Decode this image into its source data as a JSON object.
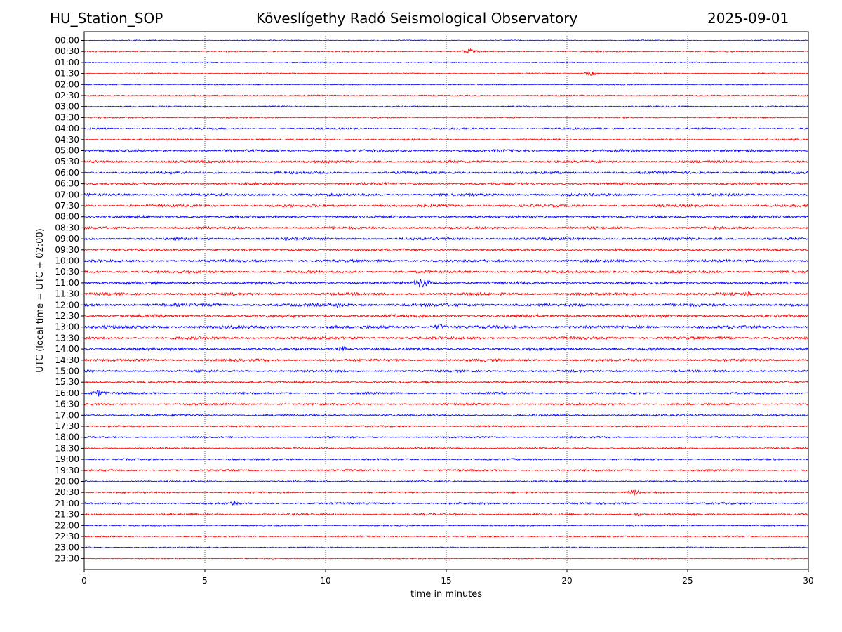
{
  "header": {
    "station": "HU_Station_SOP",
    "observatory": "Köveslígethy Radó Seismological Observatory",
    "date": "2025-09-01"
  },
  "chart_data": {
    "type": "line",
    "title": "Köveslígethy Radó Seismological Observatory",
    "xlabel": "time in minutes",
    "ylabel": "UTC (local time = UTC + 02:00)",
    "xlim": [
      0,
      30
    ],
    "x_ticks": [
      0,
      5,
      10,
      15,
      20,
      25,
      30
    ],
    "x_gridlines": "vertical dotted at each tick",
    "trace_colors": [
      "#0000ff",
      "#ff0000"
    ],
    "row_labels": [
      "00:00",
      "00:30",
      "01:00",
      "01:30",
      "02:00",
      "02:30",
      "03:00",
      "03:30",
      "04:00",
      "04:30",
      "05:00",
      "05:30",
      "06:00",
      "06:30",
      "07:00",
      "07:30",
      "08:00",
      "08:30",
      "09:00",
      "09:30",
      "10:00",
      "10:30",
      "11:00",
      "11:30",
      "12:00",
      "12:30",
      "13:00",
      "13:30",
      "14:00",
      "14:30",
      "15:00",
      "15:30",
      "16:00",
      "16:30",
      "17:00",
      "17:30",
      "18:00",
      "18:30",
      "19:00",
      "19:30",
      "20:00",
      "20:30",
      "21:00",
      "21:30",
      "22:00",
      "22:30",
      "23:00",
      "23:30"
    ],
    "noise_level": [
      0.8,
      1.0,
      0.8,
      0.8,
      0.8,
      0.9,
      1.0,
      1.0,
      1.2,
      1.2,
      1.8,
      1.8,
      1.8,
      1.8,
      1.8,
      1.8,
      1.8,
      1.8,
      1.8,
      1.8,
      1.8,
      1.8,
      2.0,
      2.0,
      2.2,
      2.2,
      2.2,
      2.0,
      2.0,
      1.8,
      1.6,
      1.6,
      1.5,
      1.4,
      1.4,
      1.2,
      1.2,
      1.2,
      1.2,
      1.3,
      1.2,
      1.2,
      1.4,
      1.4,
      1.0,
      1.0,
      0.8,
      0.8
    ],
    "events": [
      {
        "row": "00:30",
        "minute": 16.0,
        "amplitude": 4
      },
      {
        "row": "01:30",
        "minute": 21.0,
        "amplitude": 3
      },
      {
        "row": "11:00",
        "minute": 14.0,
        "amplitude": 8
      },
      {
        "row": "11:30",
        "minute": 27.5,
        "amplitude": 4
      },
      {
        "row": "12:00",
        "minute": 10.5,
        "amplitude": 4
      },
      {
        "row": "13:00",
        "minute": 14.7,
        "amplitude": 5
      },
      {
        "row": "14:00",
        "minute": 10.7,
        "amplitude": 4
      },
      {
        "row": "16:00",
        "minute": 0.6,
        "amplitude": 5
      },
      {
        "row": "20:30",
        "minute": 22.8,
        "amplitude": 4
      },
      {
        "row": "21:00",
        "minute": 6.2,
        "amplitude": 3
      },
      {
        "row": "21:30",
        "minute": 23.0,
        "amplitude": 3
      }
    ]
  }
}
